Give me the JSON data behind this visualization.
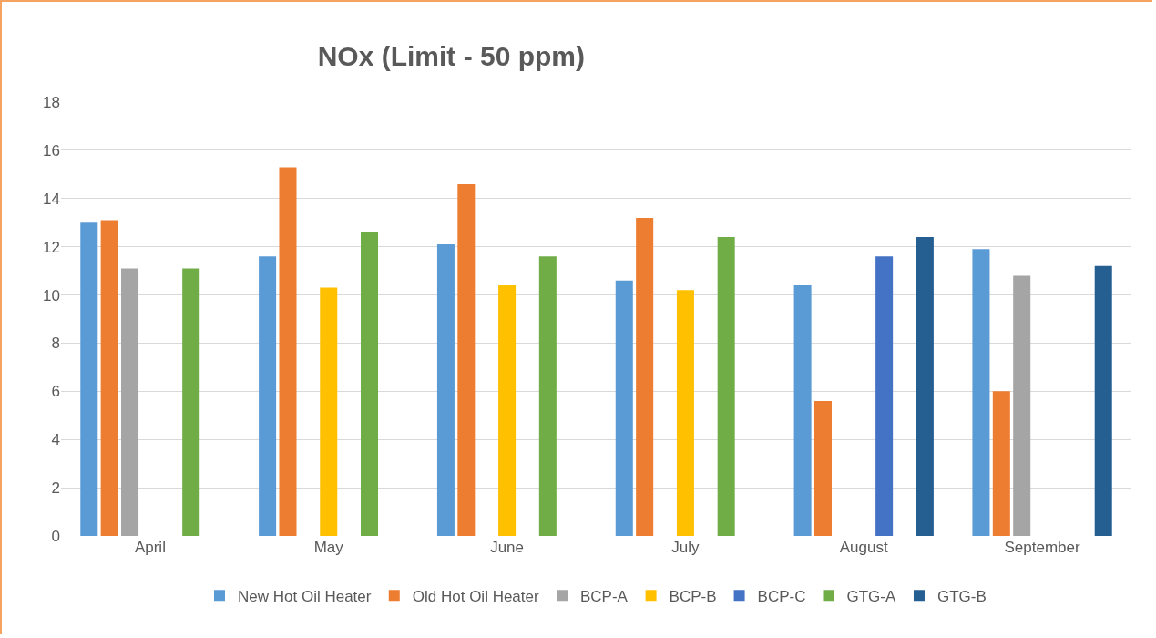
{
  "chart_data": {
    "type": "bar",
    "title": "NOx (Limit - 50 ppm)",
    "categories": [
      "April",
      "May",
      "June",
      "July",
      "August",
      "September"
    ],
    "series": [
      {
        "name": "New Hot Oil Heater",
        "color": "#5b9bd5",
        "values": [
          13.0,
          11.6,
          12.1,
          10.6,
          10.4,
          11.9
        ]
      },
      {
        "name": "Old Hot Oil Heater",
        "color": "#ed7d31",
        "values": [
          13.1,
          15.3,
          14.6,
          13.2,
          5.6,
          6.0
        ]
      },
      {
        "name": "BCP-A",
        "color": "#a5a5a5",
        "values": [
          11.1,
          null,
          null,
          null,
          null,
          10.8
        ]
      },
      {
        "name": "BCP-B",
        "color": "#ffc000",
        "values": [
          null,
          10.3,
          10.4,
          10.2,
          null,
          null
        ]
      },
      {
        "name": "BCP-C",
        "color": "#4472c4",
        "values": [
          null,
          null,
          null,
          null,
          11.6,
          null
        ]
      },
      {
        "name": "GTG-A",
        "color": "#70ad47",
        "values": [
          11.1,
          12.6,
          11.6,
          12.4,
          null,
          null
        ]
      },
      {
        "name": "GTG-B",
        "color": "#255e91",
        "values": [
          null,
          null,
          null,
          null,
          12.4,
          11.2
        ]
      }
    ],
    "ylim": [
      0,
      18
    ],
    "yticks": [
      0,
      2,
      4,
      6,
      8,
      10,
      12,
      14,
      16,
      18
    ],
    "grid": "y",
    "legend": "bottom"
  }
}
